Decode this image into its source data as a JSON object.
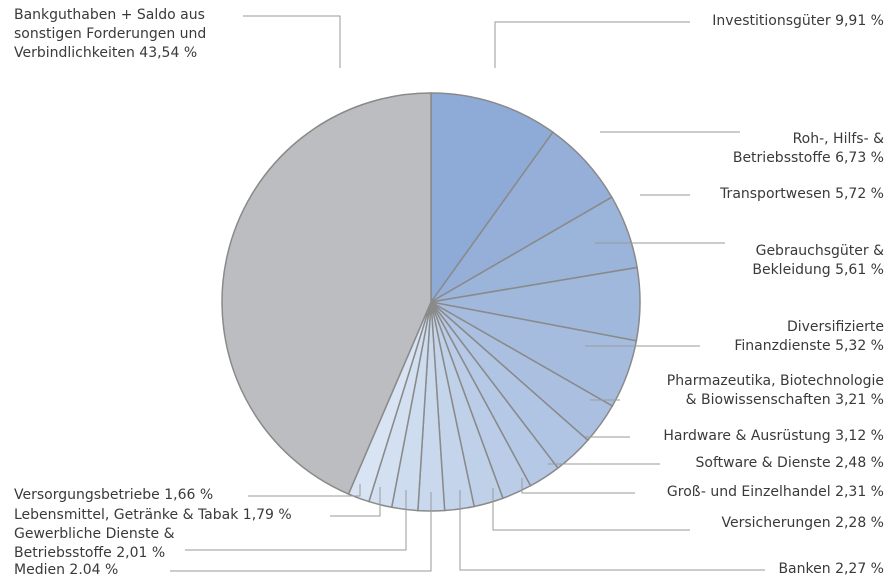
{
  "chart_data": {
    "type": "pie",
    "categories": [
      "Investitionsgüter",
      "Roh-, Hilfs- &\nBetriebsstoffe",
      "Transportwesen",
      "Gebrauchsgüter &\nBekleidung",
      "Diversifizierte\nFinanzdienste",
      "Pharmazeutika, Biotechnologie\n& Biowissenschaften",
      "Hardware & Ausrüstung",
      "Software & Dienste",
      "Groß- und Einzelhandel",
      "Versicherungen",
      "Banken",
      "Medien",
      "Gewerbliche Dienste &\nBetriebsstoffe",
      "Lebensmittel, Getränke & Tabak",
      "Versorgungsbetriebe",
      "Bankguthaben +  Saldo aus\nsonstigen Forderungen und\nVerbindlichkeiten"
    ],
    "values": [
      9.91,
      6.73,
      5.72,
      5.61,
      5.32,
      3.21,
      3.12,
      2.48,
      2.31,
      2.28,
      2.27,
      2.04,
      2.01,
      1.79,
      1.66,
      43.54
    ],
    "value_labels": [
      "9,91 %",
      "6,73 %",
      "5,72 %",
      "5,61 %",
      "5,32 %",
      "3,21 %",
      "3,12 %",
      "2,48 %",
      "2,31 %",
      "2,28 %",
      "2,27 %",
      "2.04 %",
      "2,01 %",
      "1,79 %",
      "1,66 %",
      "43,54 %"
    ],
    "colors": [
      "#8eaad6",
      "#95afd8",
      "#9bb4da",
      "#a0b8dc",
      "#a6bcdf",
      "#abc0e1",
      "#b0c4e3",
      "#b5c8e5",
      "#bacce7",
      "#bfd0e9",
      "#c4d4eb",
      "#c9d8ed",
      "#cedcef",
      "#d3e0f1",
      "#d8e4f3",
      "#bcbdc1"
    ]
  }
}
